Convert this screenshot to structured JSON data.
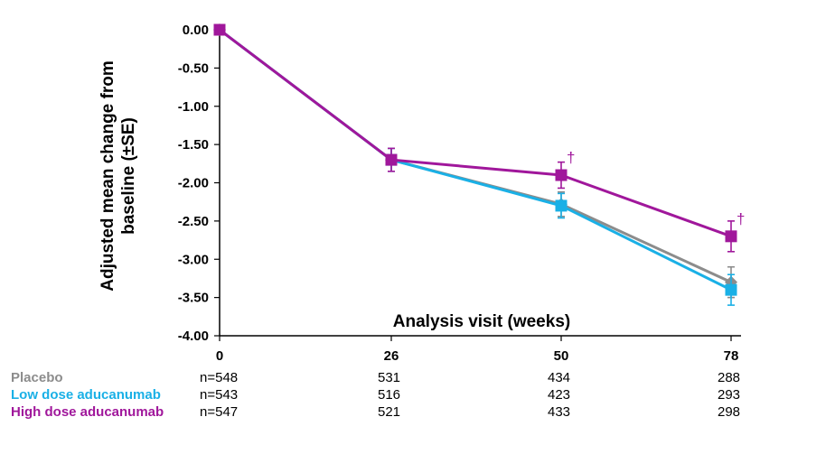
{
  "chart_data": {
    "type": "line",
    "ylabel": "Adjusted mean change from baseline (±SE)",
    "xlabel": "Analysis visit (weeks)",
    "x": [
      0,
      26,
      50,
      78
    ],
    "xticks": [
      "0",
      "26",
      "50",
      "78"
    ],
    "ylim": [
      -4.0,
      0.0
    ],
    "yticks": [
      "0.00",
      "-0.50",
      "-1.00",
      "-1.50",
      "-2.00",
      "-2.50",
      "-3.00",
      "-3.50",
      "-4.00"
    ],
    "grid": false,
    "series": [
      {
        "name": "Placebo",
        "color": "#8c8c8c",
        "marker": "diamond",
        "values": [
          0.0,
          -1.7,
          -2.28,
          -3.3
        ],
        "se": [
          0,
          0.15,
          0.16,
          0.2
        ]
      },
      {
        "name": "Low dose aducanumab",
        "color": "#1ab0e6",
        "marker": "square",
        "values": [
          0.0,
          -1.7,
          -2.3,
          -3.4
        ],
        "se": [
          0,
          0.15,
          0.16,
          0.2
        ]
      },
      {
        "name": "High dose aducanumab",
        "color": "#a0179b",
        "marker": "square",
        "values": [
          0.0,
          -1.7,
          -1.9,
          -2.7
        ],
        "se": [
          0,
          0.15,
          0.17,
          0.2
        ]
      }
    ],
    "annotations": [
      {
        "text": "†",
        "series": "High dose aducanumab",
        "x": 50
      },
      {
        "text": "†",
        "series": "High dose aducanumab",
        "x": 78
      }
    ],
    "n_table": [
      {
        "group": "Placebo",
        "color": "#8c8c8c",
        "values": [
          "n=548",
          "531",
          "434",
          "288"
        ]
      },
      {
        "group": "Low dose aducanumab",
        "color": "#1ab0e6",
        "values": [
          "n=543",
          "516",
          "423",
          "293"
        ]
      },
      {
        "group": "High dose aducanumab",
        "color": "#a0179b",
        "values": [
          "n=547",
          "521",
          "433",
          "298"
        ]
      }
    ]
  }
}
